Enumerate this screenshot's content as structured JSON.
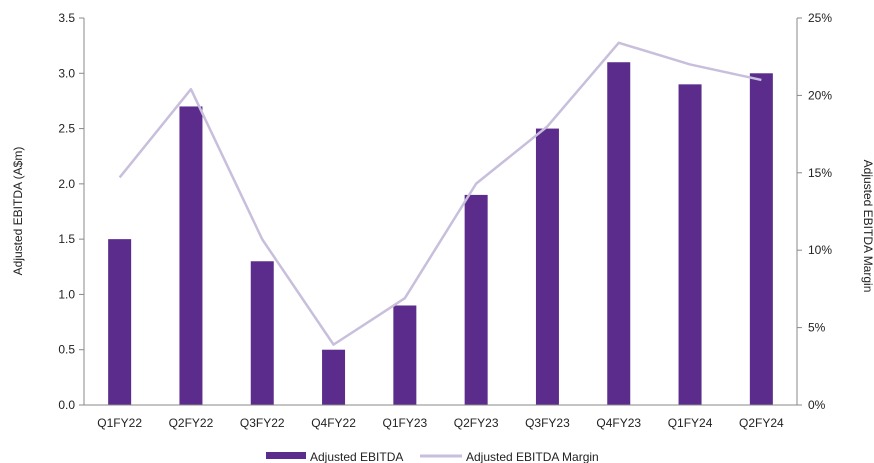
{
  "chart_data": {
    "type": "bar",
    "categories": [
      "Q1FY22",
      "Q2FY22",
      "Q3FY22",
      "Q4FY22",
      "Q1FY23",
      "Q2FY23",
      "Q3FY23",
      "Q4FY23",
      "Q1FY24",
      "Q2FY24"
    ],
    "series": [
      {
        "name": "Adjusted EBITDA",
        "type": "bar",
        "axis": "left",
        "color": "#5b2c8c",
        "values": [
          1.5,
          2.7,
          1.3,
          0.5,
          0.9,
          1.9,
          2.5,
          3.1,
          2.9,
          3.0
        ]
      },
      {
        "name": "Adjusted EBITDA Margin",
        "type": "line",
        "axis": "right",
        "color": "#c8bfdc",
        "values": [
          14.7,
          20.4,
          10.7,
          3.9,
          6.9,
          14.3,
          18.0,
          23.4,
          22.0,
          21.0
        ]
      }
    ],
    "ylabel": "Adjusted EBITDA (A$m)",
    "y2label": "Adjusted EBITDA Margin",
    "ylim": [
      0,
      3.5
    ],
    "y2lim": [
      0,
      25
    ],
    "yticks": [
      "0.0",
      "0.5",
      "1.0",
      "1.5",
      "2.0",
      "2.5",
      "3.0",
      "3.5"
    ],
    "y2ticks": [
      "0%",
      "5%",
      "10%",
      "15%",
      "20%",
      "25%"
    ],
    "grid": false,
    "legend": "bottom"
  }
}
